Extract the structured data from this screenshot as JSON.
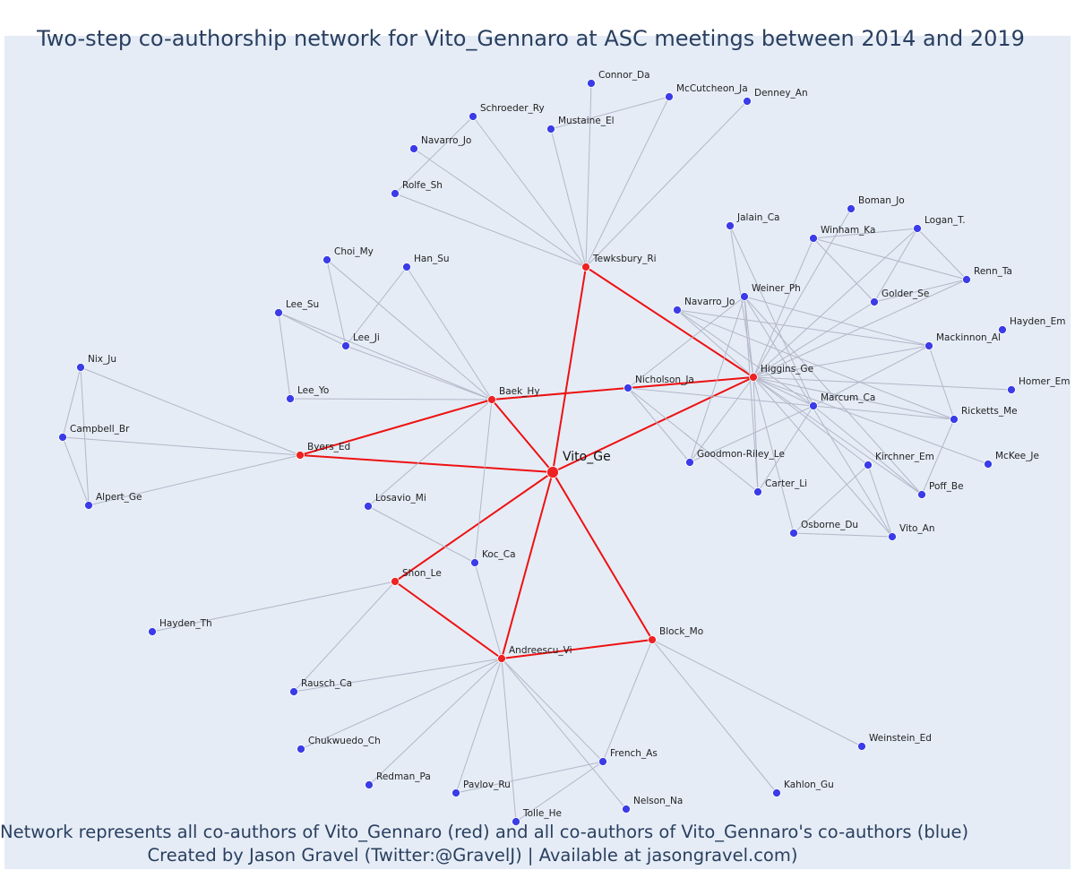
{
  "title": "Two-step co-authorship network for Vito_Gennaro at ASC meetings between 2014 and 2019",
  "caption_line1": "Network represents all co-authors of Vito_Gennaro (red) and all co-authors of Vito_Gennaro's co-authors (blue)",
  "caption_line2": "Created by Jason Gravel (Twitter:@GravelJ) | Available at jasongravel.com)",
  "colors": {
    "first_degree": "#ee2222",
    "second_degree": "#3b3be8",
    "background": "#e5ecf6",
    "text": "#2a3f5f"
  },
  "center": "Vito_Ge",
  "first_degree": [
    "Tewksbury_Ri",
    "Higgins_Ge",
    "Baek_Hy",
    "Byers_Ed",
    "Shon_Le",
    "Andreescu_Vi",
    "Block_Mo"
  ],
  "second_degree": [
    "Connor_Da",
    "McCutcheon_Ja",
    "Denney_An",
    "Schroeder_Ry",
    "Mustaine_El",
    "Navarro_Jo",
    "Rolfe_Sh",
    "Jalain_Ca",
    "Boman_Jo",
    "Winham_Ka",
    "Logan_T.",
    "Renn_Ta",
    "Golder_Se",
    "Weiner_Ph",
    "Navarro_Jo ",
    "Hayden_Em",
    "Mackinnon_Al",
    "Homer_Em",
    "Marcum_Ca",
    "Ricketts_Me",
    "McKee_Je",
    "Kirchner_Em",
    "Poff_Be",
    "Carter_Li",
    "Goodmon-Riley_Le",
    "Osborne_Du",
    "Vito_An",
    "Nicholson_Ja",
    "Choi_My",
    "Han_Su",
    "Lee_Su",
    "Lee_Ji",
    "Lee_Yo",
    "Nix_Ju",
    "Campbell_Br",
    "Alpert_Ge",
    "Losavio_Mi",
    "Koc_Ca",
    "Hayden_Th",
    "Rausch_Ca",
    "Chukwuedo_Ch",
    "Redman_Pa",
    "Pavlov_Ru",
    "Tolle_He",
    "French_As",
    "Nelson_Na",
    "Kahlon_Gu",
    "Weinstein_Ed"
  ],
  "edges": [
    [
      "Vito_Ge",
      "Tewksbury_Ri"
    ],
    [
      "Vito_Ge",
      "Higgins_Ge"
    ],
    [
      "Vito_Ge",
      "Baek_Hy"
    ],
    [
      "Vito_Ge",
      "Byers_Ed"
    ],
    [
      "Vito_Ge",
      "Shon_Le"
    ],
    [
      "Vito_Ge",
      "Andreescu_Vi"
    ],
    [
      "Vito_Ge",
      "Block_Mo"
    ],
    [
      "Tewksbury_Ri",
      "Higgins_Ge"
    ],
    [
      "Baek_Hy",
      "Byers_Ed"
    ],
    [
      "Shon_Le",
      "Andreescu_Vi"
    ],
    [
      "Andreescu_Vi",
      "Block_Mo"
    ],
    [
      "Baek_Hy",
      "Nicholson_Ja"
    ],
    [
      "Nicholson_Ja",
      "Higgins_Ge"
    ],
    [
      "Tewksbury_Ri",
      "Connor_Da"
    ],
    [
      "Tewksbury_Ri",
      "McCutcheon_Ja"
    ],
    [
      "Tewksbury_Ri",
      "Denney_An"
    ],
    [
      "Tewksbury_Ri",
      "Schroeder_Ry"
    ],
    [
      "Tewksbury_Ri",
      "Mustaine_El"
    ],
    [
      "Tewksbury_Ri",
      "Navarro_Jo"
    ],
    [
      "Tewksbury_Ri",
      "Rolfe_Sh"
    ],
    [
      "Mustaine_El",
      "McCutcheon_Ja"
    ],
    [
      "Schroeder_Ry",
      "Rolfe_Sh"
    ],
    [
      "Higgins_Ge",
      "Jalain_Ca"
    ],
    [
      "Higgins_Ge",
      "Boman_Jo"
    ],
    [
      "Higgins_Ge",
      "Winham_Ka"
    ],
    [
      "Higgins_Ge",
      "Logan_T."
    ],
    [
      "Higgins_Ge",
      "Renn_Ta"
    ],
    [
      "Higgins_Ge",
      "Golder_Se"
    ],
    [
      "Higgins_Ge",
      "Weiner_Ph"
    ],
    [
      "Higgins_Ge",
      "Navarro_Jo "
    ],
    [
      "Higgins_Ge",
      "Mackinnon_Al"
    ],
    [
      "Higgins_Ge",
      "Homer_Em"
    ],
    [
      "Higgins_Ge",
      "Marcum_Ca"
    ],
    [
      "Higgins_Ge",
      "Ricketts_Me"
    ],
    [
      "Higgins_Ge",
      "McKee_Je"
    ],
    [
      "Higgins_Ge",
      "Kirchner_Em"
    ],
    [
      "Higgins_Ge",
      "Poff_Be"
    ],
    [
      "Higgins_Ge",
      "Carter_Li"
    ],
    [
      "Higgins_Ge",
      "Goodmon-Riley_Le"
    ],
    [
      "Higgins_Ge",
      "Osborne_Du"
    ],
    [
      "Higgins_Ge",
      "Vito_An"
    ],
    [
      "Winham_Ka",
      "Logan_T."
    ],
    [
      "Winham_Ka",
      "Renn_Ta"
    ],
    [
      "Winham_Ka",
      "Golder_Se"
    ],
    [
      "Logan_T.",
      "Golder_Se"
    ],
    [
      "Golder_Se",
      "Renn_Ta"
    ],
    [
      "Logan_T.",
      "Renn_Ta"
    ],
    [
      "Marcum_Ca",
      "Mackinnon_Al"
    ],
    [
      "Marcum_Ca",
      "Ricketts_Me"
    ],
    [
      "Mackinnon_Al",
      "Ricketts_Me"
    ],
    [
      "Ricketts_Me",
      "Poff_Be"
    ],
    [
      "Marcum_Ca",
      "Goodmon-Riley_Le"
    ],
    [
      "Marcum_Ca",
      "Carter_Li"
    ],
    [
      "Marcum_Ca",
      "Poff_Be"
    ],
    [
      "Kirchner_Em",
      "Osborne_Du"
    ],
    [
      "Kirchner_Em",
      "Vito_An"
    ],
    [
      "Osborne_Du",
      "Vito_An"
    ],
    [
      "Weiner_Ph",
      "Carter_Li"
    ],
    [
      "Weiner_Ph",
      "Goodmon-Riley_Le"
    ],
    [
      "Weiner_Ph",
      "Mackinnon_Al"
    ],
    [
      "Weiner_Ph",
      "Vito_An"
    ],
    [
      "Weiner_Ph",
      "Poff_Be"
    ],
    [
      "Navarro_Jo ",
      "Mackinnon_Al"
    ],
    [
      "Navarro_Jo ",
      "Ricketts_Me"
    ],
    [
      "Navarro_Jo ",
      "Marcum_Ca"
    ],
    [
      "Nicholson_Ja",
      "Weiner_Ph"
    ],
    [
      "Nicholson_Ja",
      "Goodmon-Riley_Le"
    ],
    [
      "Nicholson_Ja",
      "Carter_Li"
    ],
    [
      "Nicholson_Ja",
      "Marcum_Ca"
    ],
    [
      "Jalain_Ca",
      "Marcum_Ca"
    ],
    [
      "Baek_Hy",
      "Choi_My"
    ],
    [
      "Baek_Hy",
      "Han_Su"
    ],
    [
      "Baek_Hy",
      "Lee_Su"
    ],
    [
      "Baek_Hy",
      "Lee_Ji"
    ],
    [
      "Baek_Hy",
      "Lee_Yo"
    ],
    [
      "Baek_Hy",
      "Losavio_Mi"
    ],
    [
      "Baek_Hy",
      "Koc_Ca"
    ],
    [
      "Choi_My",
      "Lee_Ji"
    ],
    [
      "Han_Su",
      "Lee_Ji"
    ],
    [
      "Lee_Su",
      "Lee_Ji"
    ],
    [
      "Lee_Su",
      "Lee_Yo"
    ],
    [
      "Byers_Ed",
      "Nix_Ju"
    ],
    [
      "Byers_Ed",
      "Campbell_Br"
    ],
    [
      "Byers_Ed",
      "Alpert_Ge"
    ],
    [
      "Nix_Ju",
      "Campbell_Br"
    ],
    [
      "Nix_Ju",
      "Alpert_Ge"
    ],
    [
      "Campbell_Br",
      "Alpert_Ge"
    ],
    [
      "Losavio_Mi",
      "Koc_Ca"
    ],
    [
      "Koc_Ca",
      "Andreescu_Vi"
    ],
    [
      "Shon_Le",
      "Hayden_Th"
    ],
    [
      "Shon_Le",
      "Rausch_Ca"
    ],
    [
      "Andreescu_Vi",
      "Rausch_Ca"
    ],
    [
      "Andreescu_Vi",
      "Chukwuedo_Ch"
    ],
    [
      "Andreescu_Vi",
      "Redman_Pa"
    ],
    [
      "Andreescu_Vi",
      "Pavlov_Ru"
    ],
    [
      "Andreescu_Vi",
      "Tolle_He"
    ],
    [
      "Andreescu_Vi",
      "French_As"
    ],
    [
      "Andreescu_Vi",
      "Nelson_Na"
    ],
    [
      "Block_Mo",
      "French_As"
    ],
    [
      "Block_Mo",
      "Kahlon_Gu"
    ],
    [
      "Block_Mo",
      "Weinstein_Ed"
    ],
    [
      "French_As",
      "Pavlov_Ru"
    ],
    [
      "French_As",
      "Tolle_He"
    ]
  ]
}
